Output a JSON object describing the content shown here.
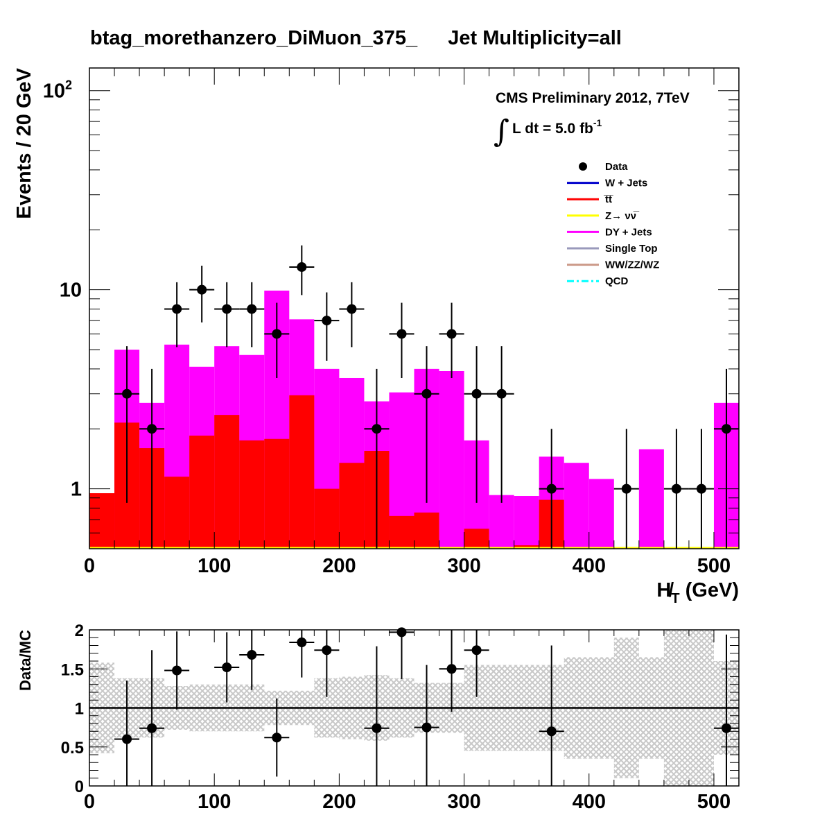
{
  "title_left": "btag_morethanzero_DiMuon_375_",
  "title_right": "Jet Multiplicity=all",
  "cms_label": "CMS Preliminary 2012, 7TeV",
  "lumi_integral": "∫",
  "lumi_text": "L dt = 5.0 fb",
  "lumi_exp": "-1",
  "colors": {
    "data": "#000000",
    "wjets": "#0000cc",
    "ttbar": "#ff0000",
    "znunu": "#ffff00",
    "dyjets": "#ff00ff",
    "singletop": "#9999bb",
    "diboson": "#cc9988",
    "qcd": "#00ffff",
    "band": "#c8c8c8"
  },
  "chart_data": [
    {
      "type": "histogram",
      "xlabel": "H̸",
      "xlabel_sub": "T",
      "xlabel_unit": " (GeV)",
      "ylabel": "Events / 20 GeV",
      "xlim": [
        0,
        520
      ],
      "ylim": [
        0.5,
        130
      ],
      "yscale": "log",
      "bin_width": 20,
      "xticks": [
        "0",
        "100",
        "200",
        "300",
        "400",
        "500"
      ],
      "yticks": [
        {
          "value": 1,
          "label": "1",
          "exp": ""
        },
        {
          "value": 10,
          "label": "10",
          "exp": ""
        },
        {
          "value": 100,
          "label": "10",
          "exp": "2"
        }
      ],
      "legend_position": "top-right",
      "legend": [
        {
          "label": "Data",
          "key": "data",
          "style": "marker"
        },
        {
          "label": "W + Jets",
          "key": "wjets",
          "style": "line"
        },
        {
          "label": "t̅t̅",
          "key": "ttbar",
          "style": "line"
        },
        {
          "label": "Z→ νν̅",
          "key": "znunu",
          "style": "line"
        },
        {
          "label": "DY + Jets",
          "key": "dyjets",
          "style": "line"
        },
        {
          "label": "Single Top",
          "key": "singletop",
          "style": "line"
        },
        {
          "label": "WW/ZZ/WZ",
          "key": "diboson",
          "style": "line"
        },
        {
          "label": "QCD",
          "key": "qcd",
          "style": "dashdot"
        }
      ],
      "bin_edges": [
        0,
        20,
        40,
        60,
        80,
        100,
        120,
        140,
        160,
        180,
        200,
        220,
        240,
        260,
        280,
        300,
        320,
        340,
        360,
        380,
        400,
        420,
        440,
        460,
        480,
        500,
        520
      ],
      "series": [
        {
          "name": "t̅t̅",
          "key": "ttbar",
          "values": [
            0.95,
            2.15,
            1.6,
            1.15,
            1.85,
            2.35,
            1.75,
            1.78,
            2.95,
            1.0,
            1.35,
            1.55,
            0.73,
            0.76,
            0,
            0.63,
            0,
            0.52,
            0.88,
            0,
            0,
            0,
            0,
            0,
            0,
            0
          ]
        },
        {
          "name": "DY + Jets",
          "key": "dyjets",
          "values": [
            0.95,
            5.0,
            2.7,
            5.3,
            4.1,
            5.2,
            4.7,
            9.9,
            7.1,
            4.0,
            3.6,
            2.75,
            3.05,
            4.0,
            3.9,
            1.75,
            0.93,
            0.92,
            1.45,
            1.35,
            1.12,
            0,
            1.58,
            0,
            0,
            2.7
          ]
        },
        {
          "name": "Data",
          "key": "data",
          "x": [
            30,
            50,
            70,
            90,
            110,
            130,
            150,
            170,
            190,
            210,
            230,
            250,
            270,
            290,
            310,
            330,
            370,
            430,
            470,
            490,
            510
          ],
          "values": [
            3,
            2,
            8,
            10,
            8,
            8,
            6,
            13,
            7,
            8,
            2,
            6,
            3,
            6,
            3,
            3,
            1,
            1,
            1,
            1,
            2
          ],
          "err_low": [
            2.15,
            1.5,
            2.85,
            3.15,
            2.85,
            2.85,
            2.4,
            3.6,
            2.6,
            2.85,
            1.5,
            2.4,
            2.15,
            2.4,
            2.15,
            2.15,
            0.9,
            0.9,
            0.9,
            0.9,
            1.5
          ],
          "err_high": [
            2.2,
            2.0,
            2.9,
            3.2,
            2.9,
            2.9,
            2.6,
            3.7,
            2.7,
            2.9,
            2.0,
            2.6,
            2.2,
            2.6,
            2.2,
            2.2,
            1.0,
            1.0,
            1.0,
            1.0,
            2.0
          ]
        }
      ]
    },
    {
      "type": "ratio",
      "ylabel": "Data/MC",
      "xlim": [
        0,
        520
      ],
      "ylim": [
        0,
        2
      ],
      "xticks": [
        "0",
        "100",
        "200",
        "300",
        "400",
        "500"
      ],
      "yticks": [
        "0",
        "0.5",
        "1",
        "1.5",
        "2"
      ],
      "reference_line": 1,
      "band": {
        "bin_edges": [
          0,
          20,
          40,
          60,
          80,
          100,
          120,
          140,
          160,
          180,
          200,
          220,
          240,
          260,
          280,
          300,
          320,
          340,
          360,
          380,
          400,
          420,
          440,
          460,
          480,
          500,
          520
        ],
        "low": [
          0.42,
          0.62,
          0.62,
          0.72,
          0.7,
          0.7,
          0.7,
          0.78,
          0.78,
          0.62,
          0.6,
          0.58,
          0.62,
          0.68,
          0.68,
          0.45,
          0.45,
          0.45,
          0.45,
          0.35,
          0.35,
          0.1,
          0.35,
          0,
          0,
          0.4
        ],
        "high": [
          1.58,
          1.38,
          1.38,
          1.28,
          1.3,
          1.3,
          1.3,
          1.22,
          1.22,
          1.38,
          1.4,
          1.42,
          1.38,
          1.32,
          1.32,
          1.55,
          1.55,
          1.55,
          1.55,
          1.65,
          1.65,
          1.9,
          1.65,
          2,
          2,
          1.6
        ]
      },
      "points": {
        "x": [
          30,
          50,
          70,
          110,
          130,
          150,
          170,
          190,
          230,
          250,
          270,
          290,
          310,
          370,
          510
        ],
        "values": [
          0.6,
          0.74,
          1.48,
          1.52,
          1.68,
          0.62,
          1.84,
          1.74,
          0.74,
          1.97,
          0.75,
          1.5,
          1.74,
          0.7,
          0.74
        ],
        "err_low": [
          0.6,
          0.74,
          0.5,
          0.45,
          0.45,
          0.5,
          0.45,
          0.6,
          0.74,
          0.6,
          0.75,
          0.55,
          0.6,
          0.7,
          0.74
        ],
        "err_high": [
          0.75,
          1.0,
          0.5,
          0.45,
          0.45,
          0.5,
          0.35,
          0.55,
          1.05,
          0.3,
          0.8,
          0.65,
          0.55,
          1.1,
          1.2
        ]
      }
    }
  ]
}
